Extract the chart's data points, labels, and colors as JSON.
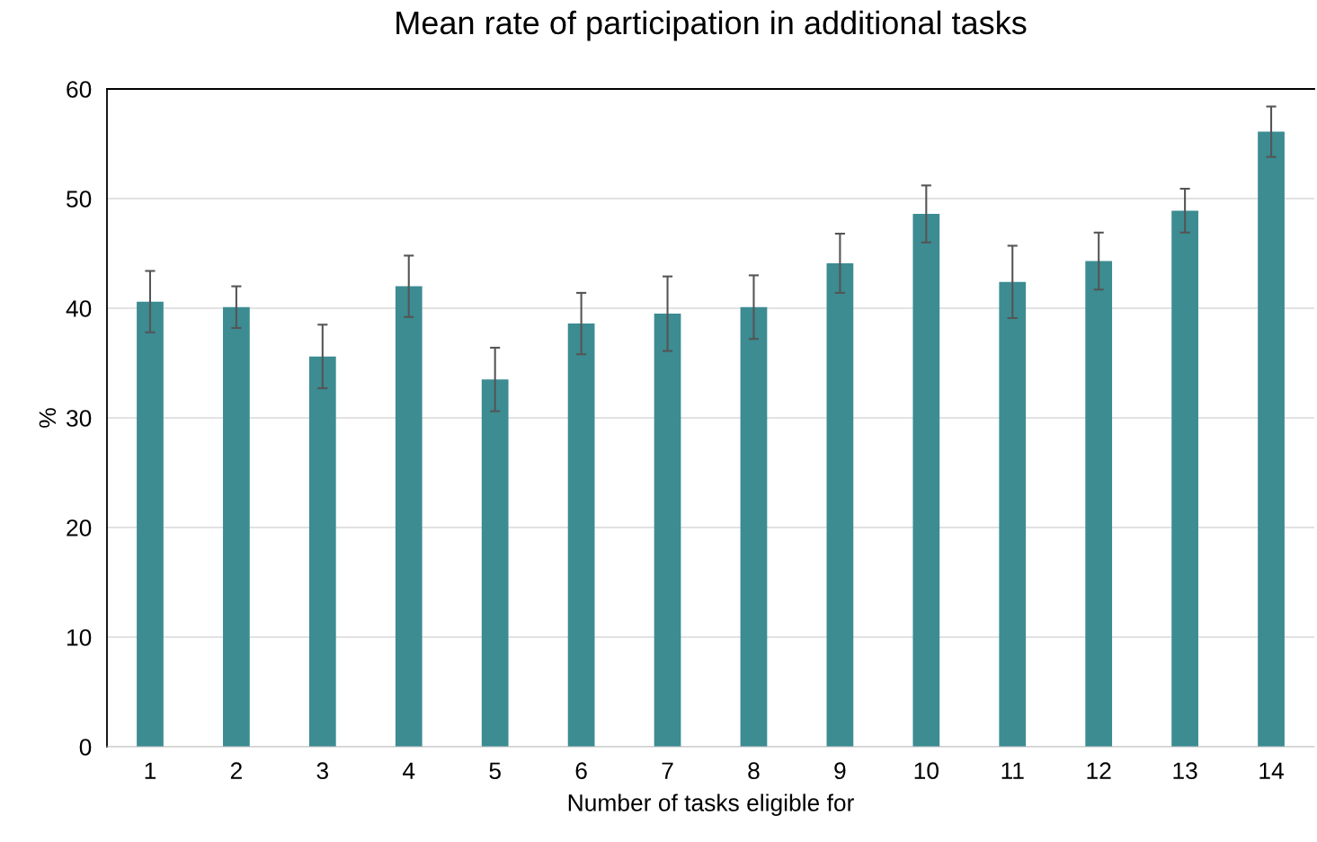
{
  "chart_data": {
    "type": "bar",
    "title": "Mean rate of participation in additional tasks",
    "xlabel": "Number of tasks eligible for",
    "ylabel": "%",
    "categories": [
      "1",
      "2",
      "3",
      "4",
      "5",
      "6",
      "7",
      "8",
      "9",
      "10",
      "11",
      "12",
      "13",
      "14"
    ],
    "values": [
      40.6,
      40.1,
      35.6,
      42.0,
      33.5,
      38.6,
      39.5,
      40.1,
      44.1,
      48.6,
      42.4,
      44.3,
      48.9,
      56.1
    ],
    "errors": [
      2.8,
      1.9,
      2.9,
      2.8,
      2.9,
      2.8,
      3.4,
      2.9,
      2.7,
      2.6,
      3.3,
      2.6,
      2.0,
      2.3
    ],
    "color": "#3c8c92",
    "ylim": [
      0,
      60
    ],
    "yticks": [
      0,
      10,
      20,
      30,
      40,
      50,
      60
    ],
    "grid": "y",
    "legend": false
  }
}
